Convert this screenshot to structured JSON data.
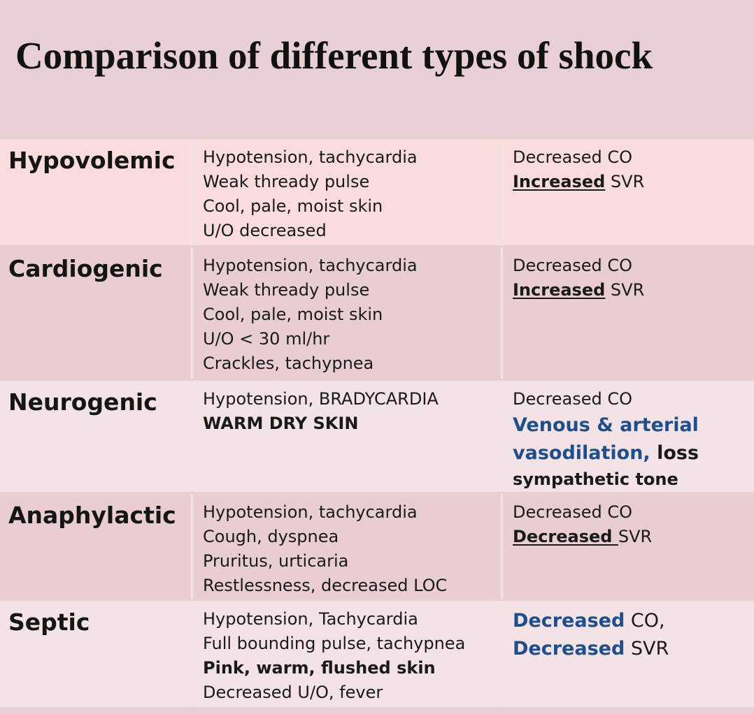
{
  "title": "Comparison of different types of shock",
  "rows": [
    {
      "type": "Hypovolemic",
      "signs": [
        "Hypotension, tachycardia",
        "Weak thready pulse",
        "Cool, pale, moist skin",
        "U/O decreased"
      ],
      "hemo": {
        "co": "Decreased CO",
        "svr_qual": "Increased",
        "svr": " SVR"
      }
    },
    {
      "type": "Cardiogenic",
      "signs": [
        "Hypotension, tachycardia",
        "Weak thready pulse",
        "Cool, pale, moist skin",
        "U/O < 30 ml/hr",
        "Crackles, tachypnea"
      ],
      "hemo": {
        "co": "Decreased CO",
        "svr_qual": "Increased",
        "svr": " SVR"
      }
    },
    {
      "type": "Neurogenic",
      "signs": [
        "Hypotension, BRADYCARDIA",
        "WARM DRY SKIN"
      ],
      "hemo": {
        "co": "Decreased CO",
        "line2": "Venous & arterial",
        "line3_blue": "vasodilation,",
        "line3_rest": " loss",
        "line4": "sympathetic tone"
      }
    },
    {
      "type": "Anaphylactic",
      "signs": [
        "Hypotension, tachycardia",
        "Cough, dyspnea",
        "Pruritus, urticaria",
        "Restlessness, decreased LOC"
      ],
      "hemo": {
        "co": "Decreased CO",
        "svr_qual": "Decreased ",
        "svr": "SVR"
      }
    },
    {
      "type": "Septic",
      "signs": [
        "Hypotension, Tachycardia",
        "Full bounding pulse, tachypnea",
        "Pink, warm, flushed skin",
        "Decreased U/O, fever"
      ],
      "hemo": {
        "l1_blue": "Decreased",
        "l1_rest": " CO,",
        "l2_blue": "Decreased",
        "l2_rest": " SVR"
      }
    }
  ]
}
